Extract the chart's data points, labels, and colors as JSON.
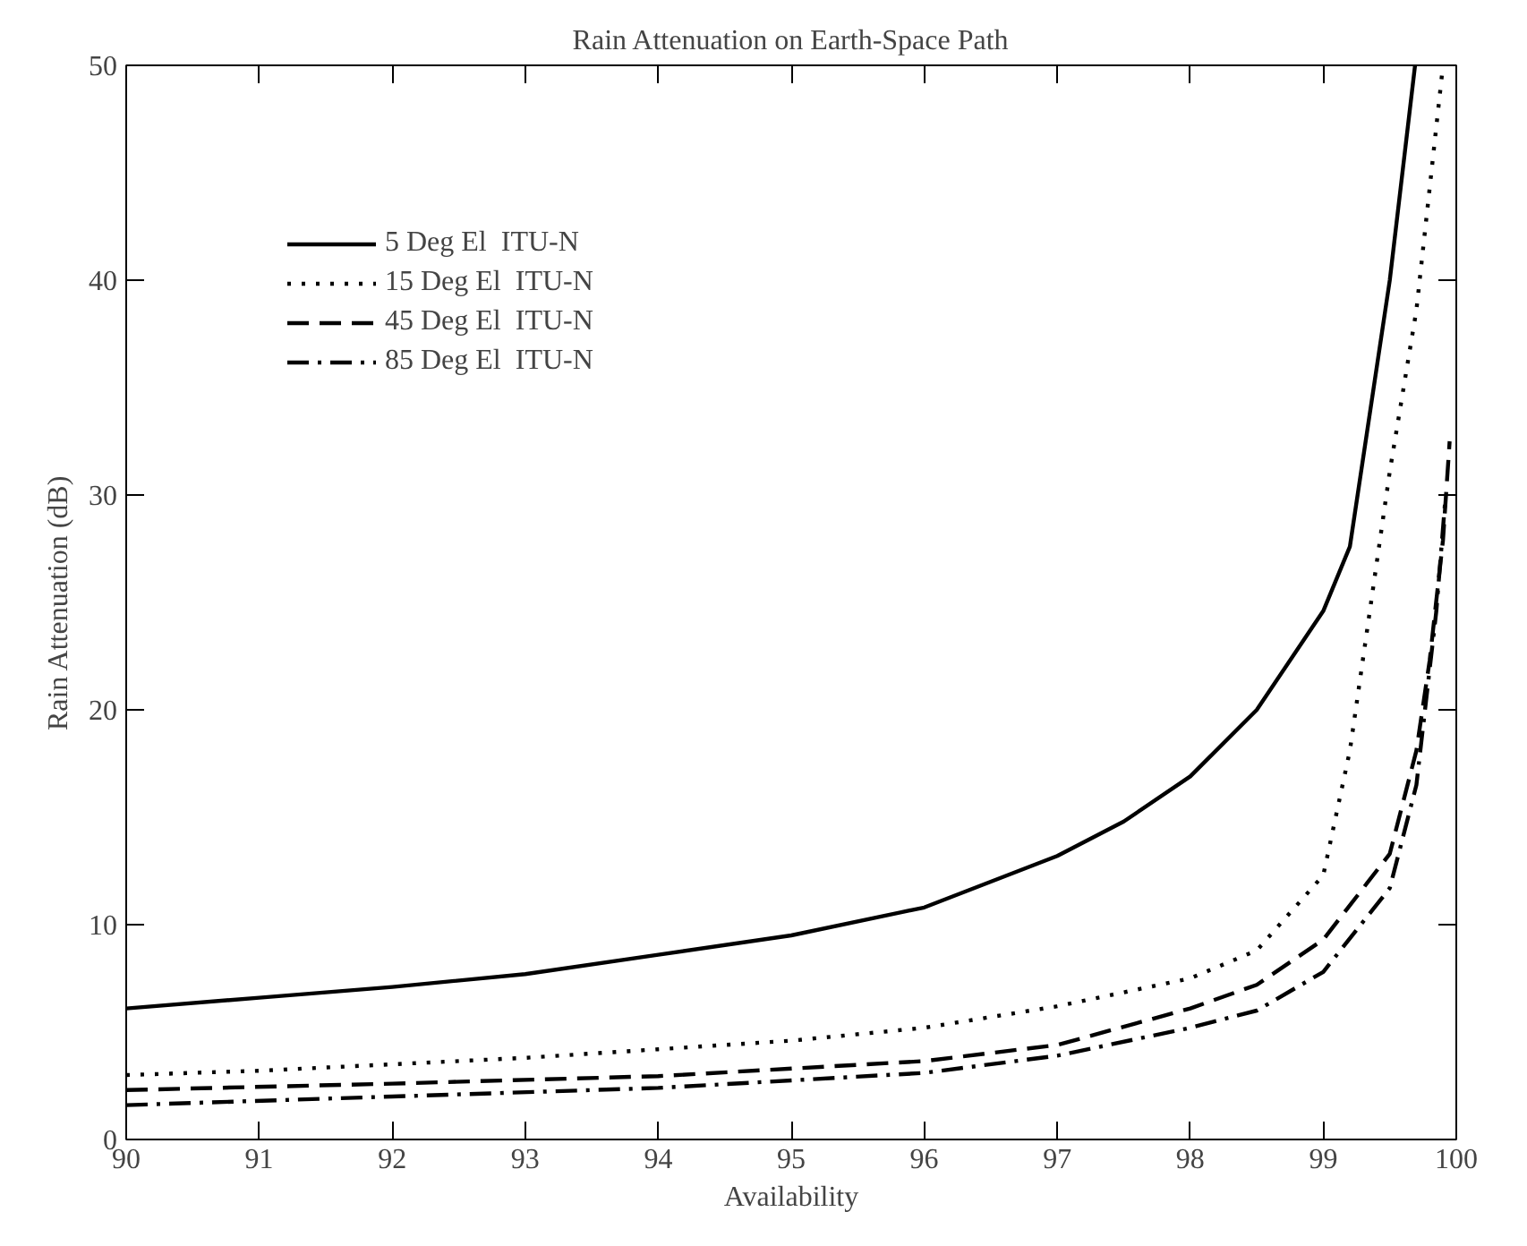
{
  "chart_data": {
    "type": "line",
    "title": "Rain Attenuation on Earth-Space Path",
    "xlabel": "Availability",
    "ylabel": "Rain Attenuation (dB)",
    "xlim": [
      90,
      100
    ],
    "xticks": [
      90,
      91,
      92,
      93,
      94,
      95,
      96,
      97,
      98,
      99,
      100
    ],
    "ylim": [
      0,
      50
    ],
    "yticks": [
      0,
      10,
      20,
      30,
      40,
      50
    ],
    "grid": false,
    "legend": "top left",
    "marker": "none",
    "series": [
      {
        "name": "5 Deg El  ITU-N",
        "color": "#000000",
        "line_style": "solid",
        "x": [
          90,
          91,
          92,
          93,
          94,
          95,
          96,
          97,
          97.5,
          98,
          98.5,
          99,
          99.2,
          99.5,
          99.69
        ],
        "values": [
          6.1,
          6.6,
          7.1,
          7.7,
          8.6,
          9.5,
          10.8,
          13.2,
          14.8,
          16.9,
          20,
          24.6,
          27.6,
          40,
          50
        ]
      },
      {
        "name": "15 Deg El  ITU-N",
        "color": "#000000",
        "line_style": "dotted",
        "x": [
          90,
          91,
          92,
          93,
          94,
          95,
          96,
          97,
          98,
          98.5,
          99,
          99.2,
          99.5,
          99.7,
          99.9
        ],
        "values": [
          3.0,
          3.2,
          3.5,
          3.8,
          4.2,
          4.6,
          5.2,
          6.2,
          7.5,
          8.8,
          12.3,
          18.1,
          31.1,
          38.6,
          50
        ]
      },
      {
        "name": "45 Deg El  ITU-N",
        "color": "#000000",
        "line_style": "dashed",
        "x": [
          90,
          92,
          94,
          96,
          97,
          98,
          98.5,
          99,
          99.5,
          99.7,
          99.8,
          99.9,
          99.95
        ],
        "values": [
          2.3,
          2.6,
          2.95,
          3.65,
          4.4,
          6.1,
          7.2,
          9.3,
          13.3,
          18.1,
          22.3,
          27.9,
          32.5
        ]
      },
      {
        "name": "85 Deg El  ITU-N",
        "color": "#000000",
        "line_style": "dashdot",
        "x": [
          90,
          92,
          94,
          96,
          97,
          98,
          98.5,
          99,
          99.5,
          99.7,
          99.85,
          99.92
        ],
        "values": [
          1.6,
          2.0,
          2.4,
          3.1,
          3.9,
          5.2,
          6.0,
          7.8,
          11.7,
          16.5,
          24.6,
          30
        ]
      }
    ]
  }
}
